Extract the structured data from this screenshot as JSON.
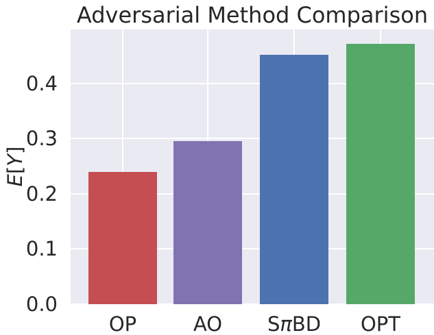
{
  "title": "Adversarial Method Comparison",
  "chart_data": {
    "type": "bar",
    "title": "Adversarial Method Comparison",
    "categories": [
      "OP",
      "AO",
      "SπBD",
      "OPT"
    ],
    "values": [
      0.24,
      0.295,
      0.452,
      0.472
    ],
    "xlabel": "",
    "ylabel": "E[Y]",
    "yticks": [
      0.0,
      0.1,
      0.2,
      0.3,
      0.4
    ],
    "ytick_labels": [
      "0.0",
      "0.1",
      "0.2",
      "0.3",
      "0.4"
    ],
    "ylim": [
      0,
      0.4975
    ],
    "grid": "on",
    "legend": "none",
    "bar_colors": [
      "#C44E52",
      "#8172B2",
      "#4C72B0",
      "#55A868"
    ],
    "plot_background": "#EAEAF2",
    "gridline_color": "#FFFFFF",
    "text_color": "#262626"
  }
}
